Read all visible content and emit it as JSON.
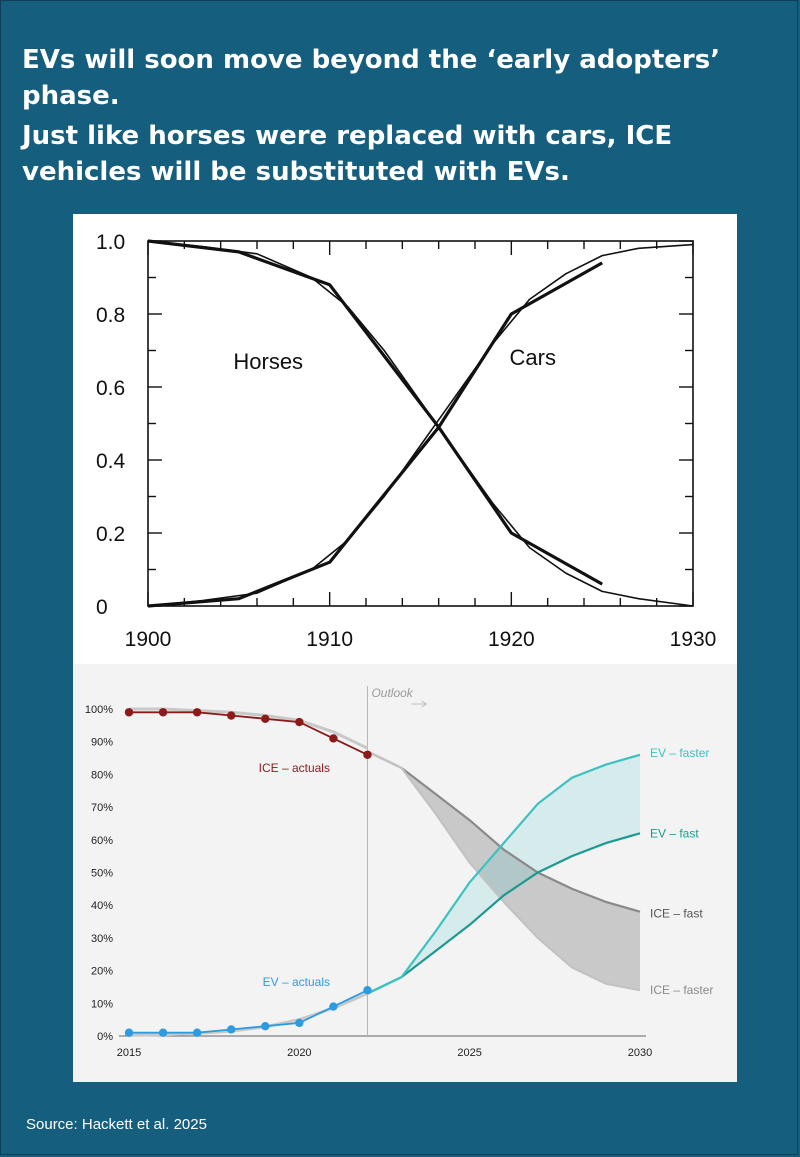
{
  "headline": {
    "line1": "EVs will soon move beyond the ‘early adopters’ phase.",
    "line2": "Just like horses were replaced with cars, ICE vehicles will be substituted with EVs."
  },
  "source": "Source: Hackett et al. 2025",
  "colors": {
    "background": "#165e7e",
    "panel": "#f3f3f3",
    "ice_actuals": "#8b1a1a",
    "ev_actuals": "#2e9be0",
    "ev_faster": "#3fc1c0",
    "ev_fast": "#1d9a8f",
    "ice_gray": "#8a8a8a"
  },
  "chart_data": [
    {
      "type": "line",
      "title": "",
      "xlabel": "",
      "ylabel": "",
      "xlim": [
        1900,
        1930
      ],
      "ylim": [
        0,
        1.0
      ],
      "x_ticks": [
        "1900",
        "1910",
        "1920",
        "1930"
      ],
      "y_ticks": [
        "0",
        "0.2",
        "0.4",
        "0.6",
        "0.8",
        "1.0"
      ],
      "grid": false,
      "annotations": [
        "Horses",
        "Cars"
      ],
      "series": [
        {
          "name": "Horses",
          "kind": "data",
          "x": [
            1900,
            1905,
            1910,
            1916,
            1920,
            1925
          ],
          "values": [
            1.0,
            0.97,
            0.88,
            0.49,
            0.2,
            0.06
          ]
        },
        {
          "name": "Cars",
          "kind": "data",
          "x": [
            1900,
            1905,
            1910,
            1916,
            1920,
            1925
          ],
          "values": [
            0.0,
            0.02,
            0.12,
            0.49,
            0.8,
            0.94
          ]
        },
        {
          "name": "Horses",
          "kind": "fit",
          "x": [
            1900,
            1903,
            1906,
            1909,
            1911,
            1913,
            1915,
            1916,
            1917,
            1919,
            1921,
            1923,
            1925,
            1927,
            1930
          ],
          "values": [
            1.0,
            0.985,
            0.965,
            0.9,
            0.82,
            0.7,
            0.56,
            0.49,
            0.42,
            0.28,
            0.16,
            0.09,
            0.04,
            0.02,
            0.0
          ]
        },
        {
          "name": "Cars",
          "kind": "fit",
          "x": [
            1900,
            1903,
            1906,
            1909,
            1911,
            1913,
            1915,
            1916,
            1917,
            1919,
            1921,
            1923,
            1925,
            1927,
            1930
          ],
          "values": [
            0.0,
            0.015,
            0.035,
            0.1,
            0.18,
            0.3,
            0.44,
            0.51,
            0.58,
            0.72,
            0.84,
            0.91,
            0.96,
            0.98,
            0.99
          ]
        }
      ]
    },
    {
      "type": "line",
      "title": "",
      "xlabel": "",
      "ylabel": "",
      "xlim": [
        2015,
        2030
      ],
      "ylim": [
        0,
        100
      ],
      "x_ticks": [
        "2015",
        "2020",
        "2025",
        "2030"
      ],
      "y_ticks": [
        "0%",
        "10%",
        "20%",
        "30%",
        "40%",
        "50%",
        "60%",
        "70%",
        "80%",
        "90%",
        "100%"
      ],
      "outlook_label": "Outlook",
      "outlook_start": 2022,
      "grid": false,
      "series": [
        {
          "name": "ICE – actuals",
          "x": [
            2015,
            2016,
            2017,
            2018,
            2019,
            2020,
            2021,
            2022
          ],
          "values": [
            99,
            99,
            99,
            98,
            97,
            96,
            91,
            86
          ]
        },
        {
          "name": "EV – actuals",
          "x": [
            2015,
            2016,
            2017,
            2018,
            2019,
            2020,
            2021,
            2022
          ],
          "values": [
            1,
            1,
            1,
            2,
            3,
            4,
            9,
            14
          ]
        },
        {
          "name": "ICE – fast",
          "x": [
            2022,
            2023,
            2024,
            2025,
            2026,
            2027,
            2028,
            2029,
            2030
          ],
          "values": [
            87,
            82,
            74,
            66,
            57,
            50,
            45,
            41,
            38
          ]
        },
        {
          "name": "ICE – faster",
          "x": [
            2022,
            2023,
            2024,
            2025,
            2026,
            2027,
            2028,
            2029,
            2030
          ],
          "values": [
            87,
            82,
            68,
            53,
            41,
            30,
            21,
            16,
            14
          ]
        },
        {
          "name": "EV – fast",
          "x": [
            2022,
            2023,
            2024,
            2025,
            2026,
            2027,
            2028,
            2029,
            2030
          ],
          "values": [
            13,
            18,
            26,
            34,
            43,
            50,
            55,
            59,
            62
          ]
        },
        {
          "name": "EV – faster",
          "x": [
            2022,
            2023,
            2024,
            2025,
            2026,
            2027,
            2028,
            2029,
            2030
          ],
          "values": [
            13,
            18,
            32,
            47,
            59,
            71,
            79,
            83,
            86
          ]
        }
      ],
      "background_curves": [
        {
          "x": [
            2015,
            2016,
            2017,
            2018,
            2019,
            2020,
            2021,
            2022
          ],
          "values": [
            100,
            100,
            99.5,
            99,
            98,
            96.5,
            93,
            88
          ]
        },
        {
          "x": [
            2015,
            2016,
            2017,
            2018,
            2019,
            2020,
            2021,
            2022
          ],
          "values": [
            0.2,
            0.4,
            0.8,
            1.5,
            2.8,
            5,
            8.5,
            13
          ]
        }
      ]
    }
  ]
}
